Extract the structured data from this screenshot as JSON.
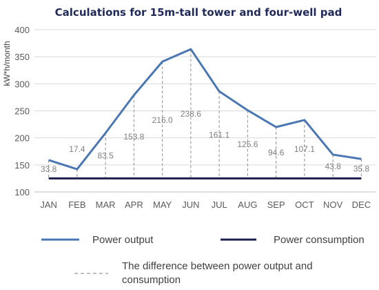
{
  "chart_data": {
    "type": "line",
    "title": "Calculations  for 15m-tall tower and four-well pad",
    "ylabel": "kW*h/month",
    "xlabel": "",
    "categories": [
      "JAN",
      "FEB",
      "MAR",
      "APR",
      "MAY",
      "JUN",
      "JUL",
      "AUG",
      "SEP",
      "OCT",
      "NOV",
      "DEC"
    ],
    "ylim": [
      100,
      400
    ],
    "yticks": [
      100,
      150,
      200,
      250,
      300,
      350,
      400
    ],
    "grid": true,
    "series": [
      {
        "name": "Power output",
        "color": "#4a77b4",
        "values": [
          159,
          142,
          209,
          279,
          341,
          364,
          286,
          251,
          220,
          233,
          169,
          161
        ]
      },
      {
        "name": "Power consumption",
        "color": "#1b1f4e",
        "values": [
          125,
          125,
          125,
          125,
          125,
          125,
          125,
          125,
          125,
          125,
          125,
          125
        ]
      }
    ],
    "difference": {
      "name": "The difference between power output and consumption",
      "labels": [
        "33.8",
        "17.4",
        "83.5",
        "153.8",
        "216.0",
        "238.6",
        "161.1",
        "125.6",
        "94.6",
        "107.1",
        "43.8",
        "35.8"
      ]
    },
    "legend_position": "bottom"
  }
}
